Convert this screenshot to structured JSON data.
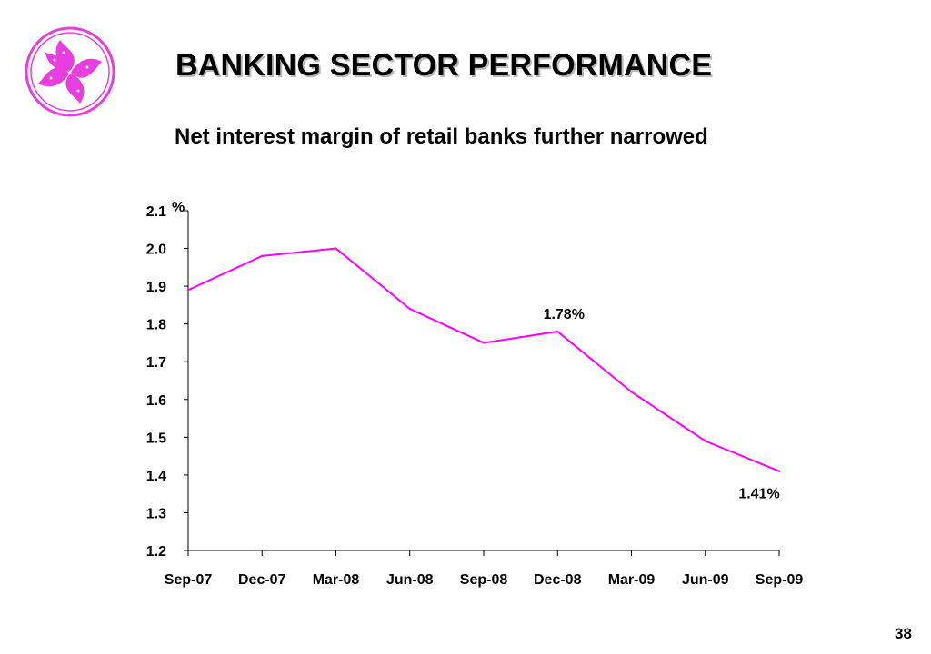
{
  "slide": {
    "title": "BANKING SECTOR PERFORMANCE",
    "subtitle": "Net interest margin of retail banks further narrowed",
    "page_number": "38"
  },
  "colors": {
    "series": "#ff00ff",
    "logo": "#e83ee0",
    "axis": "#000000"
  },
  "chart_data": {
    "type": "line",
    "title": "",
    "xlabel": "",
    "ylabel": "%",
    "categories": [
      "Sep-07",
      "Dec-07",
      "Mar-08",
      "Jun-08",
      "Sep-08",
      "Dec-08",
      "Mar-09",
      "Jun-09",
      "Sep-09"
    ],
    "series": [
      {
        "values": [
          1.89,
          1.98,
          2.0,
          1.84,
          1.75,
          1.78,
          1.62,
          1.49,
          1.41
        ]
      }
    ],
    "ylim": [
      1.2,
      2.1
    ],
    "yticks": [
      "1.2",
      "1.3",
      "1.4",
      "1.5",
      "1.6",
      "1.7",
      "1.8",
      "1.9",
      "2.0",
      "2.1"
    ],
    "annotations": [
      {
        "category": "Dec-08",
        "text": "1.78%"
      },
      {
        "category": "Sep-09",
        "text": "1.41%"
      }
    ],
    "grid": false,
    "legend": "none"
  }
}
